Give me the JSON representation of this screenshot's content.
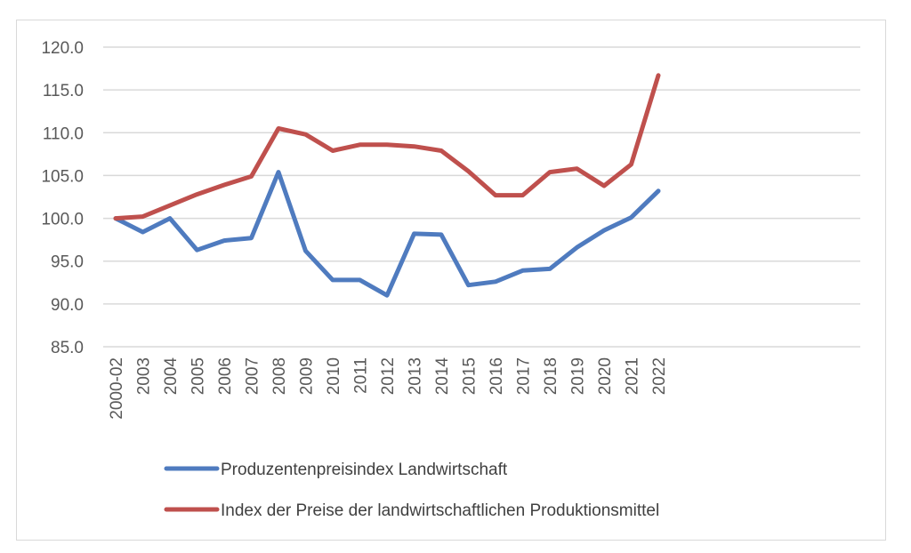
{
  "chart_data": {
    "type": "line",
    "x": [
      "2000-02",
      "2003",
      "2004",
      "2005",
      "2006",
      "2007",
      "2008",
      "2009",
      "2010",
      "2011",
      "2012",
      "2013",
      "2014",
      "2015",
      "2016",
      "2017",
      "2018",
      "2019",
      "2020",
      "2021",
      "2022"
    ],
    "ylim": [
      85,
      120
    ],
    "yticks": [
      "85.0",
      "90.0",
      "95.0",
      "100.0",
      "105.0",
      "110.0",
      "115.0",
      "120.0"
    ],
    "grid": true,
    "legend": "bottom-left",
    "series": [
      {
        "name": "Produzentenpreisindex Landwirtschaft",
        "color": "#4f7bbf",
        "values": [
          100.0,
          98.4,
          100.0,
          96.3,
          97.4,
          97.7,
          105.4,
          96.2,
          92.8,
          92.8,
          91.0,
          98.2,
          98.1,
          92.2,
          92.6,
          93.9,
          94.1,
          96.6,
          98.6,
          100.1,
          103.2
        ]
      },
      {
        "name": "Index der Preise der landwirtschaftlichen Produktionsmittel",
        "color": "#bf504d",
        "values": [
          100.0,
          100.2,
          101.5,
          102.8,
          103.9,
          104.9,
          110.5,
          109.8,
          107.9,
          108.6,
          108.6,
          108.4,
          107.9,
          105.5,
          102.7,
          102.7,
          105.4,
          105.8,
          103.8,
          106.3,
          116.7
        ]
      }
    ]
  }
}
